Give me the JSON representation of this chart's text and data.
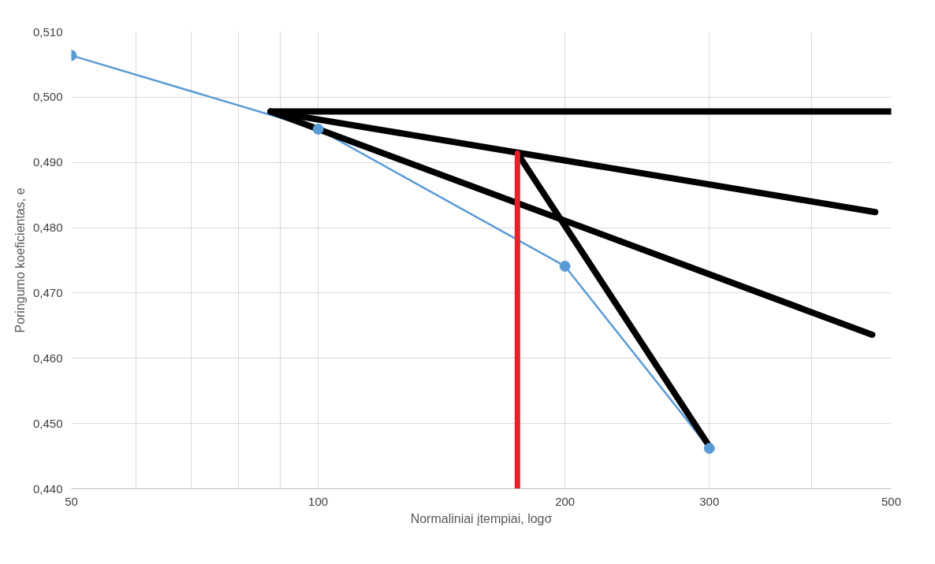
{
  "chart_data": {
    "type": "line",
    "xlabel": "Normaliniai įtempiai, logσ",
    "ylabel": "Poringumo koeficientas, e",
    "log": "x",
    "grid": true,
    "xlim": [
      50,
      500
    ],
    "xticks": [
      50,
      {
        "value": 60,
        "label": null
      },
      {
        "value": 70,
        "label": null
      },
      {
        "value": 80,
        "label": null
      },
      {
        "value": 90,
        "label": null
      },
      100,
      200,
      300,
      {
        "value": 400,
        "label": null
      },
      500
    ],
    "ylim": [
      0.44,
      0.51
    ],
    "yticks": [
      {
        "value": 0.44,
        "label": "0,440"
      },
      {
        "value": 0.45,
        "label": "0,450"
      },
      {
        "value": 0.46,
        "label": "0,460"
      },
      {
        "value": 0.47,
        "label": "0,470"
      },
      {
        "value": 0.48,
        "label": "0,480"
      },
      {
        "value": 0.49,
        "label": "0,490"
      },
      {
        "value": 0.5,
        "label": "0,500"
      },
      {
        "value": 0.51,
        "label": "0,510"
      }
    ],
    "series": [
      {
        "color": "#5b9bd5",
        "x": [
          50,
          100,
          200,
          300
        ],
        "values": [
          0.5064,
          0.4951,
          0.4741,
          0.4462
        ],
        "marker": "circle"
      },
      {
        "color": "#000000",
        "x": [
          87.5,
          500
        ],
        "values": [
          0.4978,
          0.4978
        ],
        "marker": "none"
      },
      {
        "color": "#000000",
        "x": [
          87.5,
          478
        ],
        "values": [
          0.4978,
          0.4824
        ],
        "marker": "none"
      },
      {
        "color": "#000000",
        "x": [
          87.5,
          474
        ],
        "values": [
          0.4978,
          0.4636
        ],
        "marker": "none"
      },
      {
        "color": "#000000",
        "x": [
          175,
          300
        ],
        "values": [
          0.4914,
          0.4465
        ],
        "marker": "none"
      },
      {
        "color": "#e8202a",
        "x": [
          175,
          175
        ],
        "values": [
          0.44,
          0.4914
        ],
        "marker": "none"
      }
    ]
  }
}
